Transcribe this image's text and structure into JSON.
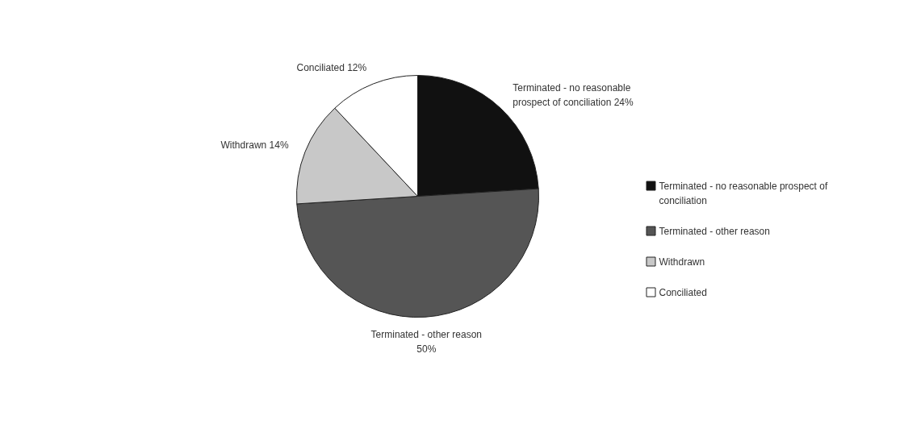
{
  "chart_data": {
    "type": "pie",
    "categories": [
      "Terminated - no reasonable prospect of conciliation",
      "Terminated - other reason",
      "Withdrawn",
      "Conciliated"
    ],
    "values": [
      24,
      50,
      14,
      12
    ],
    "value_labels": [
      "24%",
      "50%",
      "14%",
      "12%"
    ],
    "colors": [
      "#111111",
      "#555555",
      "#c8c8c8",
      "#ffffff"
    ],
    "legend": "right"
  }
}
